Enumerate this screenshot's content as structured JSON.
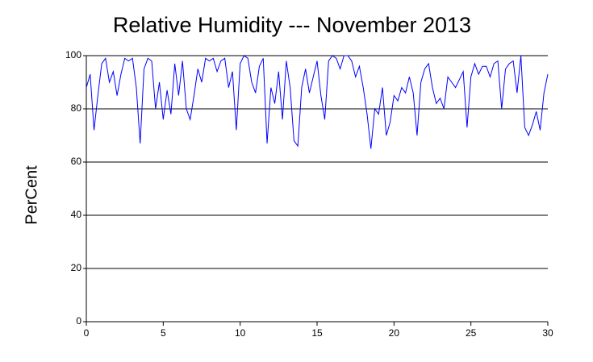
{
  "chart_data": {
    "type": "line",
    "title": "Relative Humidity --- November 2013",
    "y_label": "PerCent",
    "x": [
      0,
      0.25,
      0.5,
      0.75,
      1,
      1.25,
      1.5,
      1.75,
      2,
      2.25,
      2.5,
      2.75,
      3,
      3.25,
      3.5,
      3.75,
      4,
      4.25,
      4.5,
      4.75,
      5,
      5.25,
      5.5,
      5.75,
      6,
      6.25,
      6.5,
      6.75,
      7,
      7.25,
      7.5,
      7.75,
      8,
      8.25,
      8.5,
      8.75,
      9,
      9.25,
      9.5,
      9.75,
      10,
      10.25,
      10.5,
      10.75,
      11,
      11.25,
      11.5,
      11.75,
      12,
      12.25,
      12.5,
      12.75,
      13,
      13.25,
      13.5,
      13.75,
      14,
      14.25,
      14.5,
      14.75,
      15,
      15.25,
      15.5,
      15.75,
      16,
      16.25,
      16.5,
      16.75,
      17,
      17.25,
      17.5,
      17.75,
      18,
      18.25,
      18.5,
      18.75,
      19,
      19.25,
      19.5,
      19.75,
      20,
      20.25,
      20.5,
      20.75,
      21,
      21.25,
      21.5,
      21.75,
      22,
      22.25,
      22.5,
      22.75,
      23,
      23.25,
      23.5,
      23.75,
      24,
      24.25,
      24.5,
      24.75,
      25,
      25.25,
      25.5,
      25.75,
      26,
      26.25,
      26.5,
      26.75,
      27,
      27.25,
      27.5,
      27.75,
      28,
      28.25,
      28.5,
      28.75,
      29,
      29.25,
      29.5,
      29.75,
      30
    ],
    "values": [
      88,
      93,
      72,
      85,
      97,
      99,
      90,
      94,
      85,
      93,
      99,
      98,
      99,
      88,
      67,
      95,
      99,
      98,
      80,
      90,
      76,
      87,
      78,
      97,
      85,
      98,
      80,
      76,
      85,
      95,
      90,
      99,
      98,
      99,
      94,
      98,
      99,
      88,
      94,
      72,
      97,
      100,
      99,
      90,
      86,
      96,
      99,
      67,
      88,
      82,
      94,
      76,
      98,
      88,
      68,
      66,
      88,
      95,
      86,
      92,
      98,
      85,
      76,
      98,
      100,
      99,
      95,
      100,
      100,
      98,
      92,
      96,
      88,
      78,
      65,
      80,
      78,
      88,
      70,
      75,
      85,
      83,
      88,
      86,
      92,
      86,
      70,
      90,
      95,
      97,
      88,
      82,
      84,
      80,
      92,
      90,
      88,
      91,
      94,
      73,
      92,
      97,
      93,
      96,
      96,
      92,
      97,
      98,
      80,
      95,
      97,
      98,
      86,
      100,
      73,
      70,
      74,
      79,
      72,
      86,
      93
    ],
    "color": "#0000ff",
    "xlim": [
      0,
      30
    ],
    "xticks": [
      0,
      5,
      10,
      15,
      20,
      25,
      30
    ],
    "ylim": [
      0,
      100
    ],
    "yticks": [
      0,
      20,
      40,
      60,
      80,
      100
    ],
    "grid": true
  }
}
